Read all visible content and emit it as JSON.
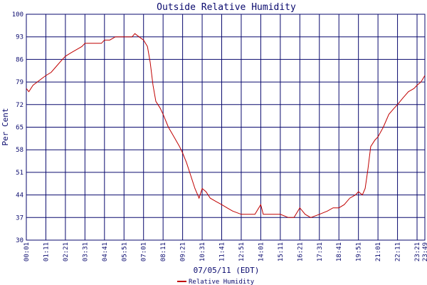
{
  "chart_data": {
    "type": "line",
    "title": "Outside Relative Humidity",
    "xlabel": "07/05/11 (EDT)",
    "ylabel": "Per Cent",
    "ylim": [
      30,
      100
    ],
    "yticks": [
      30,
      37,
      44,
      51,
      58,
      65,
      72,
      79,
      86,
      93,
      100
    ],
    "xlim": [
      "00:01",
      "23:49"
    ],
    "xticks": [
      "00:01",
      "01:11",
      "02:21",
      "03:31",
      "04:41",
      "05:51",
      "07:01",
      "08:11",
      "09:21",
      "10:31",
      "11:41",
      "12:51",
      "14:01",
      "15:11",
      "16:21",
      "17:31",
      "18:41",
      "19:51",
      "21:01",
      "22:11",
      "23:21",
      "23:49"
    ],
    "grid": true,
    "legend_position": "bottom-center",
    "colors": {
      "series": "#c00000",
      "grid": "#0a0a6e",
      "text": "#0a0a6e"
    },
    "series": [
      {
        "name": "Relative Humidity",
        "points": [
          [
            "00:01",
            77
          ],
          [
            "00:10",
            76
          ],
          [
            "00:25",
            78
          ],
          [
            "00:40",
            79
          ],
          [
            "00:55",
            80
          ],
          [
            "01:11",
            81
          ],
          [
            "01:30",
            82
          ],
          [
            "01:50",
            84
          ],
          [
            "02:10",
            86
          ],
          [
            "02:21",
            87
          ],
          [
            "02:40",
            88
          ],
          [
            "03:00",
            89
          ],
          [
            "03:20",
            90
          ],
          [
            "03:31",
            91
          ],
          [
            "03:45",
            91
          ],
          [
            "04:10",
            91
          ],
          [
            "04:30",
            91
          ],
          [
            "04:41",
            92
          ],
          [
            "05:00",
            92
          ],
          [
            "05:20",
            93
          ],
          [
            "05:51",
            93
          ],
          [
            "06:20",
            93
          ],
          [
            "06:30",
            94
          ],
          [
            "06:45",
            93
          ],
          [
            "07:01",
            92
          ],
          [
            "07:15",
            90
          ],
          [
            "07:25",
            85
          ],
          [
            "07:35",
            78
          ],
          [
            "07:45",
            73
          ],
          [
            "08:00",
            71
          ],
          [
            "08:11",
            69
          ],
          [
            "08:30",
            65
          ],
          [
            "08:50",
            62
          ],
          [
            "09:10",
            59
          ],
          [
            "09:21",
            57
          ],
          [
            "09:35",
            54
          ],
          [
            "09:50",
            50
          ],
          [
            "10:05",
            46
          ],
          [
            "10:20",
            43
          ],
          [
            "10:31",
            46
          ],
          [
            "10:45",
            45
          ],
          [
            "11:00",
            43
          ],
          [
            "11:20",
            42
          ],
          [
            "11:41",
            41
          ],
          [
            "12:00",
            40
          ],
          [
            "12:20",
            39
          ],
          [
            "12:51",
            38
          ],
          [
            "13:20",
            38
          ],
          [
            "13:40",
            38
          ],
          [
            "14:01",
            41
          ],
          [
            "14:10",
            38
          ],
          [
            "14:40",
            38
          ],
          [
            "15:11",
            38
          ],
          [
            "15:40",
            37
          ],
          [
            "16:00",
            37
          ],
          [
            "16:21",
            40
          ],
          [
            "16:40",
            38
          ],
          [
            "17:00",
            37
          ],
          [
            "17:31",
            38
          ],
          [
            "18:00",
            39
          ],
          [
            "18:20",
            40
          ],
          [
            "18:41",
            40
          ],
          [
            "19:00",
            41
          ],
          [
            "19:20",
            43
          ],
          [
            "19:40",
            44
          ],
          [
            "19:51",
            45
          ],
          [
            "20:05",
            44
          ],
          [
            "20:15",
            46
          ],
          [
            "20:25",
            52
          ],
          [
            "20:35",
            59
          ],
          [
            "20:50",
            61
          ],
          [
            "21:01",
            62
          ],
          [
            "21:20",
            65
          ],
          [
            "21:40",
            69
          ],
          [
            "22:00",
            71
          ],
          [
            "22:11",
            72
          ],
          [
            "22:30",
            74
          ],
          [
            "22:50",
            76
          ],
          [
            "23:10",
            77
          ],
          [
            "23:21",
            78
          ],
          [
            "23:35",
            79
          ],
          [
            "23:49",
            81
          ]
        ]
      }
    ]
  }
}
